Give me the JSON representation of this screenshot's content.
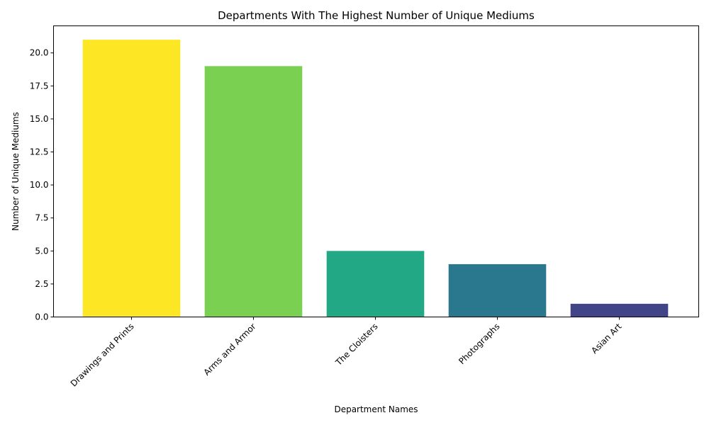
{
  "chart_data": {
    "type": "bar",
    "title": "Departments With The Highest Number of Unique Mediums",
    "xlabel": "Department Names",
    "ylabel": "Number of Unique Mediums",
    "categories": [
      "Drawings and Prints",
      "Arms and Armor",
      "The Cloisters",
      "Photographs",
      "Asian Art"
    ],
    "values": [
      21,
      19,
      5,
      4,
      1
    ],
    "colors": [
      "#fde725",
      "#7ad151",
      "#22a884",
      "#2a788e",
      "#414487"
    ],
    "ylim": [
      0,
      22.05
    ],
    "yticks": [
      "0.0",
      "2.5",
      "5.0",
      "7.5",
      "10.0",
      "12.5",
      "15.0",
      "17.5",
      "20.0"
    ],
    "grid": false,
    "legend": "none"
  }
}
